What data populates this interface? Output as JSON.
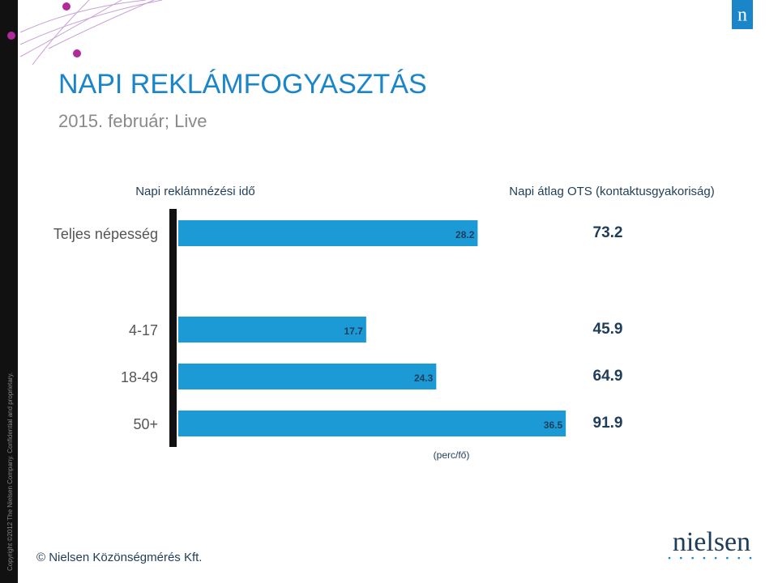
{
  "slide": {
    "title": "NAPI REKLÁMFOGYASZTÁS",
    "subtitle": "2015. február; Live",
    "copyright": "Copyright ©2012 The Nielsen Company. Confidential and proprietary.",
    "footer": "© Nielsen Közönségmérés Kft.",
    "logo_small": "n",
    "logo": "nielsen"
  },
  "chart_data": {
    "type": "bar",
    "orientation": "horizontal",
    "categories": [
      "Teljes népesség",
      "4-17",
      "18-49",
      "50+"
    ],
    "series": [
      {
        "name": "Napi reklámnézési idő",
        "color": "#1b9ad6",
        "values": [
          28.2,
          17.7,
          24.3,
          36.5
        ]
      },
      {
        "name": "Napi átlag OTS (kontaktusgyakoriság)",
        "color": "#1f3d5a",
        "values": [
          73.2,
          45.9,
          64.9,
          91.9
        ]
      }
    ],
    "unit_label": "(perc/fő)",
    "xlim": [
      0,
      40
    ]
  }
}
